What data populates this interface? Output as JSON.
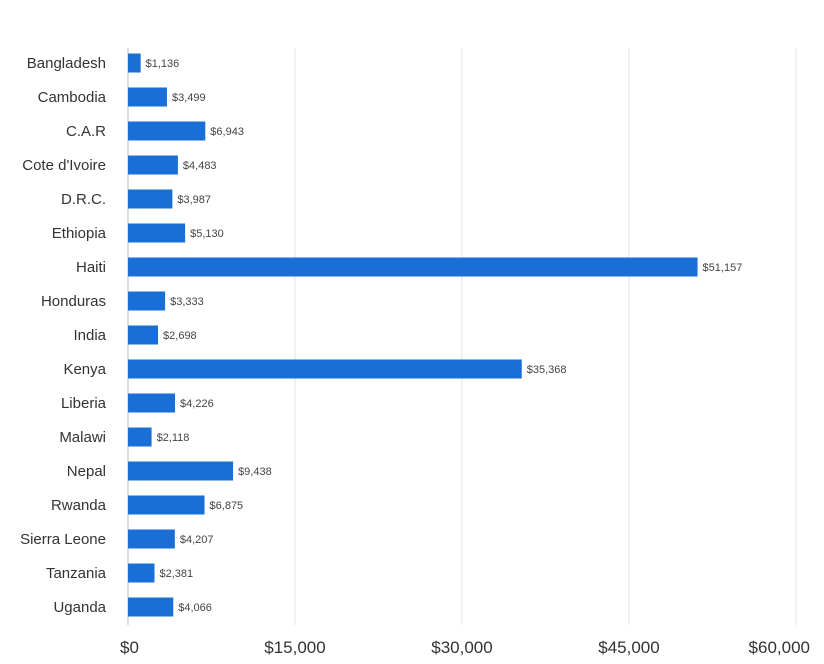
{
  "chart_data": {
    "type": "bar",
    "orientation": "horizontal",
    "categories": [
      "Bangladesh",
      "Cambodia",
      "C.A.R",
      "Cote d'Ivoire",
      "D.R.C.",
      "Ethiopia",
      "Haiti",
      "Honduras",
      "India",
      "Kenya",
      "Liberia",
      "Malawi",
      "Nepal",
      "Rwanda",
      "Sierra Leone",
      "Tanzania",
      "Uganda"
    ],
    "values": [
      1136,
      3499,
      6943,
      4483,
      3987,
      5130,
      51157,
      3333,
      2698,
      35368,
      4226,
      2118,
      9438,
      6875,
      4207,
      2381,
      4066
    ],
    "value_labels": [
      "$1,136",
      "$3,499",
      "$6,943",
      "$4,483",
      "$3,987",
      "$5,130",
      "$51,157",
      "$3,333",
      "$2,698",
      "$35,368",
      "$4,226",
      "$2,118",
      "$9,438",
      "$6,875",
      "$4,207",
      "$2,381",
      "$4,066"
    ],
    "xlim": [
      0,
      60000
    ],
    "xticks": [
      0,
      15000,
      30000,
      45000,
      60000
    ],
    "xtick_labels": [
      "$0",
      "$15,000",
      "$30,000",
      "$45,000",
      "$60,000"
    ],
    "grid": "vertical",
    "title": "",
    "xlabel": "",
    "ylabel": "",
    "bar_color": "#1a6fd6",
    "grid_color": "#e3e3e3"
  }
}
